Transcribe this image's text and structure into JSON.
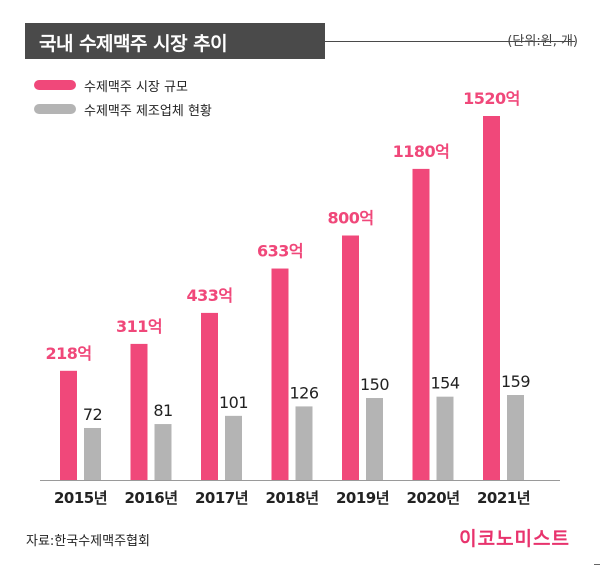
{
  "header": {
    "title": "국내 수제맥주 시장 추이",
    "unit": "(단위:원, 개)"
  },
  "legend": {
    "items": [
      {
        "label": "수제맥주 시장 규모",
        "color": "#f0487a"
      },
      {
        "label": "수제맥주 제조업체 현황",
        "color": "#b4b4b4"
      }
    ]
  },
  "chart_data": {
    "type": "bar",
    "categories": [
      "2015년",
      "2016년",
      "2017년",
      "2018년",
      "2019년",
      "2020년",
      "2021년"
    ],
    "series": [
      {
        "name": "수제맥주 시장 규모",
        "values": [
          218,
          311,
          433,
          633,
          800,
          1180,
          1520
        ],
        "labels": [
          "218억",
          "311억",
          "433억",
          "633억",
          "800억",
          "1180억",
          "1520억"
        ],
        "color": "#f0487a"
      },
      {
        "name": "수제맥주 제조업체 현황",
        "values": [
          72,
          81,
          101,
          126,
          150,
          154,
          159
        ],
        "labels": [
          "72",
          "81",
          "101",
          "126",
          "150",
          "154",
          "159"
        ],
        "color": "#b4b4b4"
      }
    ],
    "legend_position": "top-left",
    "grid": false
  },
  "footer": {
    "source": "자료:한국수제맥주협회",
    "brand": "이코노미스트"
  }
}
